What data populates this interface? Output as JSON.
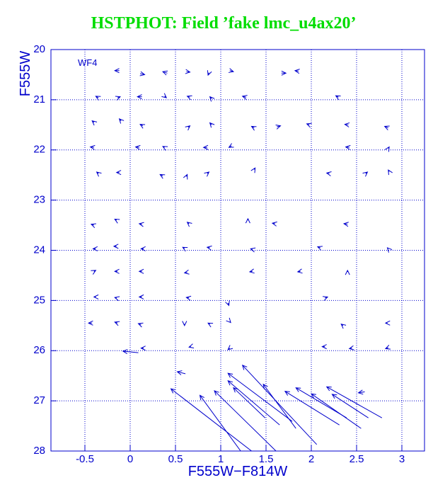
{
  "chart_data": {
    "type": "quiver",
    "title": "HSTPHOT: Field ’fake lmc_u4ax20’",
    "x_label": "F555W−F814W",
    "y_label": "F555W",
    "annotation": "WF4",
    "xlim": [
      -0.875,
      3.25
    ],
    "ylim": [
      20,
      28
    ],
    "y_reversed": true,
    "xticks": [
      -0.5,
      0,
      0.5,
      1,
      1.5,
      2,
      2.5,
      3
    ],
    "yticks": [
      20,
      21,
      22,
      23,
      24,
      25,
      26,
      27,
      28
    ],
    "grid": true,
    "color": "#0000cc",
    "title_color": "#00dd00",
    "x_start": [
      0.09,
      1.34,
      1.22,
      1.61,
      1.79,
      1.65,
      1.49,
      2.06,
      1.83,
      2.31,
      2.39,
      2.55,
      2.78,
      2.63,
      0.61,
      2.59,
      -0.12,
      0.11,
      0.41,
      0.62,
      0.87,
      1.1,
      1.67,
      1.86,
      -0.35,
      -0.14,
      0.13,
      0.38,
      0.66,
      0.9,
      1.28,
      2.3,
      -0.4,
      -0.1,
      0.14,
      0.64,
      0.9,
      1.37,
      1.62,
      1.98,
      2.41,
      2.85,
      -0.4,
      0.1,
      0.38,
      0.85,
      1.12,
      2.42,
      2.85,
      -0.35,
      -0.12,
      0.36,
      0.62,
      0.85,
      1.37,
      2.2,
      2.6,
      2.86,
      -0.4,
      -0.15,
      0.13,
      0.65,
      1.3,
      1.6,
      2.4,
      -0.38,
      -0.15,
      0.15,
      0.6,
      0.88,
      1.35,
      2.1,
      2.85,
      -0.4,
      -0.14,
      0.13,
      0.63,
      1.35,
      1.88,
      2.4,
      -0.38,
      -0.15,
      0.13,
      0.65,
      1.08,
      2.15,
      -0.42,
      -0.14,
      0.12,
      0.6,
      0.88,
      1.1,
      2.35,
      2.84,
      0.15,
      0.67,
      1.1,
      2.15,
      2.45,
      2.85
    ],
    "y_start": [
      26.04,
      28.0,
      28.0,
      28.0,
      27.41,
      27.48,
      27.34,
      27.87,
      27.55,
      27.48,
      27.34,
      27.55,
      27.34,
      27.34,
      26.46,
      26.82,
      20.42,
      20.48,
      20.47,
      20.44,
      20.46,
      20.42,
      20.47,
      20.43,
      20.96,
      20.96,
      20.94,
      20.93,
      20.95,
      20.98,
      20.95,
      20.95,
      21.45,
      21.42,
      21.52,
      21.55,
      21.5,
      21.56,
      21.54,
      21.5,
      21.5,
      21.56,
      21.95,
      21.95,
      21.95,
      21.95,
      21.92,
      21.95,
      21.97,
      22.47,
      22.45,
      22.52,
      22.53,
      22.47,
      22.39,
      22.47,
      22.47,
      22.43,
      23.5,
      23.4,
      23.48,
      23.47,
      23.4,
      23.47,
      23.48,
      23.97,
      23.92,
      23.97,
      23.96,
      23.95,
      23.98,
      23.95,
      23.97,
      24.42,
      24.42,
      24.42,
      24.44,
      24.42,
      24.42,
      24.43,
      24.93,
      24.95,
      24.93,
      24.95,
      25.05,
      24.95,
      25.45,
      25.45,
      25.48,
      25.47,
      25.47,
      25.42,
      25.5,
      25.45,
      25.95,
      25.92,
      25.95,
      25.92,
      25.95,
      25.94
    ],
    "x_end": [
      -0.08,
      0.45,
      0.77,
      0.93,
      1.08,
      1.08,
      1.14,
      1.24,
      1.47,
      1.71,
      1.83,
      2.0,
      2.17,
      2.23,
      0.52,
      2.52,
      -0.17,
      0.16,
      0.36,
      0.66,
      0.86,
      1.14,
      1.72,
      1.82,
      -0.38,
      -0.11,
      0.08,
      0.4,
      0.63,
      0.88,
      1.24,
      2.27,
      -0.42,
      -0.12,
      0.11,
      0.66,
      0.88,
      1.34,
      1.66,
      1.95,
      2.37,
      2.81,
      -0.44,
      0.06,
      0.36,
      0.81,
      1.09,
      2.38,
      2.86,
      -0.37,
      -0.15,
      0.33,
      0.63,
      0.87,
      1.38,
      2.17,
      2.62,
      2.85,
      -0.43,
      -0.17,
      0.1,
      0.63,
      1.3,
      1.57,
      2.36,
      -0.41,
      -0.18,
      0.12,
      0.58,
      0.85,
      1.33,
      2.07,
      2.84,
      -0.38,
      -0.17,
      0.1,
      0.6,
      1.32,
      1.85,
      2.4,
      -0.4,
      -0.17,
      0.1,
      0.62,
      1.09,
      2.18,
      -0.46,
      -0.17,
      0.09,
      0.6,
      0.86,
      1.11,
      2.33,
      2.82,
      0.12,
      0.65,
      1.08,
      2.12,
      2.42,
      2.82
    ],
    "y_end": [
      26.01,
      26.76,
      26.89,
      26.8,
      26.45,
      26.6,
      26.74,
      26.29,
      26.67,
      26.81,
      26.74,
      26.86,
      26.72,
      26.87,
      26.42,
      26.84,
      20.42,
      20.5,
      20.44,
      20.45,
      20.51,
      20.44,
      20.47,
      20.42,
      20.93,
      20.94,
      20.94,
      20.96,
      20.93,
      20.94,
      20.93,
      20.92,
      21.42,
      21.38,
      21.49,
      21.52,
      21.46,
      21.53,
      21.52,
      21.48,
      21.49,
      21.53,
      21.94,
      21.94,
      21.93,
      21.95,
      21.95,
      21.94,
      21.94,
      22.44,
      22.45,
      22.49,
      22.49,
      22.44,
      22.36,
      22.46,
      22.44,
      22.4,
      23.48,
      23.38,
      23.47,
      23.44,
      23.37,
      23.46,
      23.47,
      23.97,
      23.92,
      23.97,
      23.94,
      23.94,
      23.97,
      23.93,
      23.95,
      24.4,
      24.42,
      24.42,
      24.45,
      24.43,
      24.43,
      24.4,
      24.93,
      24.94,
      24.93,
      24.94,
      25.1,
      24.93,
      25.45,
      25.43,
      25.46,
      25.5,
      25.45,
      25.44,
      25.47,
      25.45,
      25.95,
      25.93,
      25.98,
      25.92,
      25.96,
      25.96
    ]
  }
}
